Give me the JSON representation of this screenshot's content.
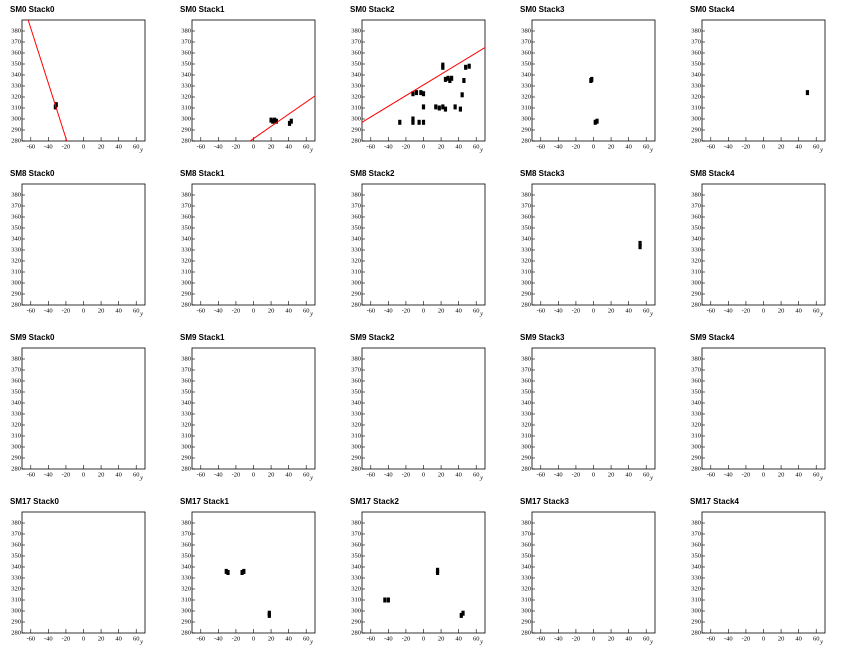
{
  "chart_data": [
    {
      "type": "scatter",
      "title": "SM0 Stack0",
      "x_label": "y",
      "xlim": [
        -70,
        70
      ],
      "ylim": [
        280,
        390
      ],
      "xticks": [
        -60,
        -40,
        -20,
        0,
        20,
        40,
        60
      ],
      "yticks": [
        280,
        290,
        300,
        310,
        320,
        330,
        340,
        350,
        360,
        370,
        380
      ],
      "color": "#000000",
      "x": [
        -32,
        -31
      ],
      "y": [
        311,
        313
      ],
      "fit": {
        "color": "#ff0000",
        "x": [
          -63,
          -19
        ],
        "y": [
          390,
          280
        ]
      }
    },
    {
      "type": "scatter",
      "title": "SM0 Stack1",
      "x_label": "y",
      "xlim": [
        -70,
        70
      ],
      "ylim": [
        280,
        390
      ],
      "xticks": [
        -60,
        -40,
        -20,
        0,
        20,
        40,
        60
      ],
      "yticks": [
        280,
        290,
        300,
        310,
        320,
        330,
        340,
        350,
        360,
        370,
        380
      ],
      "color": "#000000",
      "x": [
        20,
        22,
        24,
        26,
        41,
        43
      ],
      "y": [
        299,
        298,
        299,
        298,
        296,
        298
      ],
      "fit": {
        "color": "#ff0000",
        "x": [
          -4,
          70
        ],
        "y": [
          280,
          321
        ]
      }
    },
    {
      "type": "scatter",
      "title": "SM0 Stack2",
      "x_label": "y",
      "xlim": [
        -70,
        70
      ],
      "ylim": [
        280,
        390
      ],
      "xticks": [
        -60,
        -40,
        -20,
        0,
        20,
        40,
        60
      ],
      "yticks": [
        280,
        290,
        300,
        310,
        320,
        330,
        340,
        350,
        360,
        370,
        380
      ],
      "color": "#000000",
      "x": [
        -27,
        -12,
        -12,
        -5,
        0,
        -12,
        -8,
        -3,
        0,
        0,
        14,
        18,
        22,
        25,
        22,
        22,
        25,
        28,
        32,
        30,
        36,
        42,
        44,
        46,
        48,
        52
      ],
      "y": [
        297,
        297,
        300,
        297,
        297,
        323,
        324,
        324,
        323,
        311,
        311,
        310,
        311,
        309,
        347,
        349,
        336,
        337,
        337,
        335,
        311,
        309,
        322,
        335,
        347,
        348
      ],
      "fit": {
        "color": "#ff0000",
        "x": [
          -70,
          70
        ],
        "y": [
          297,
          365
        ]
      }
    },
    {
      "type": "scatter",
      "title": "SM0 Stack3",
      "x_label": "y",
      "xlim": [
        -70,
        70
      ],
      "ylim": [
        280,
        390
      ],
      "xticks": [
        -60,
        -40,
        -20,
        0,
        20,
        40,
        60
      ],
      "yticks": [
        280,
        290,
        300,
        310,
        320,
        330,
        340,
        350,
        360,
        370,
        380
      ],
      "color": "#000000",
      "x": [
        -3,
        -2,
        2,
        4
      ],
      "y": [
        335,
        336,
        297,
        298
      ]
    },
    {
      "type": "scatter",
      "title": "SM0 Stack4",
      "x_label": "y",
      "xlim": [
        -70,
        70
      ],
      "ylim": [
        280,
        390
      ],
      "xticks": [
        -60,
        -40,
        -20,
        0,
        20,
        40,
        60
      ],
      "yticks": [
        280,
        290,
        300,
        310,
        320,
        330,
        340,
        350,
        360,
        370,
        380
      ],
      "color": "#000000",
      "x": [
        50
      ],
      "y": [
        324
      ]
    },
    {
      "type": "scatter",
      "title": "SM8 Stack0",
      "x_label": "y",
      "xlim": [
        -70,
        70
      ],
      "ylim": [
        280,
        390
      ],
      "xticks": [
        -60,
        -40,
        -20,
        0,
        20,
        40,
        60
      ],
      "yticks": [
        280,
        290,
        300,
        310,
        320,
        330,
        340,
        350,
        360,
        370,
        380
      ],
      "color": "#000000",
      "x": [],
      "y": []
    },
    {
      "type": "scatter",
      "title": "SM8 Stack1",
      "x_label": "y",
      "xlim": [
        -70,
        70
      ],
      "ylim": [
        280,
        390
      ],
      "xticks": [
        -60,
        -40,
        -20,
        0,
        20,
        40,
        60
      ],
      "yticks": [
        280,
        290,
        300,
        310,
        320,
        330,
        340,
        350,
        360,
        370,
        380
      ],
      "color": "#000000",
      "x": [],
      "y": []
    },
    {
      "type": "scatter",
      "title": "SM8 Stack2",
      "x_label": "y",
      "xlim": [
        -70,
        70
      ],
      "ylim": [
        280,
        390
      ],
      "xticks": [
        -60,
        -40,
        -20,
        0,
        20,
        40,
        60
      ],
      "yticks": [
        280,
        290,
        300,
        310,
        320,
        330,
        340,
        350,
        360,
        370,
        380
      ],
      "color": "#000000",
      "x": [],
      "y": []
    },
    {
      "type": "scatter",
      "title": "SM8 Stack3",
      "x_label": "y",
      "xlim": [
        -70,
        70
      ],
      "ylim": [
        280,
        390
      ],
      "xticks": [
        -60,
        -40,
        -20,
        0,
        20,
        40,
        60
      ],
      "yticks": [
        280,
        290,
        300,
        310,
        320,
        330,
        340,
        350,
        360,
        370,
        380
      ],
      "color": "#000000",
      "x": [
        53,
        53
      ],
      "y": [
        336,
        333
      ]
    },
    {
      "type": "scatter",
      "title": "SM8 Stack4",
      "x_label": "y",
      "xlim": [
        -70,
        70
      ],
      "ylim": [
        280,
        390
      ],
      "xticks": [
        -60,
        -40,
        -20,
        0,
        20,
        40,
        60
      ],
      "yticks": [
        280,
        290,
        300,
        310,
        320,
        330,
        340,
        350,
        360,
        370,
        380
      ],
      "color": "#000000",
      "x": [],
      "y": []
    },
    {
      "type": "scatter",
      "title": "SM9 Stack0",
      "x_label": "y",
      "xlim": [
        -70,
        70
      ],
      "ylim": [
        280,
        390
      ],
      "xticks": [
        -60,
        -40,
        -20,
        0,
        20,
        40,
        60
      ],
      "yticks": [
        280,
        290,
        300,
        310,
        320,
        330,
        340,
        350,
        360,
        370,
        380
      ],
      "color": "#000000",
      "x": [],
      "y": []
    },
    {
      "type": "scatter",
      "title": "SM9 Stack1",
      "x_label": "y",
      "xlim": [
        -70,
        70
      ],
      "ylim": [
        280,
        390
      ],
      "xticks": [
        -60,
        -40,
        -20,
        0,
        20,
        40,
        60
      ],
      "yticks": [
        280,
        290,
        300,
        310,
        320,
        330,
        340,
        350,
        360,
        370,
        380
      ],
      "color": "#000000",
      "x": [],
      "y": []
    },
    {
      "type": "scatter",
      "title": "SM9 Stack2",
      "x_label": "y",
      "xlim": [
        -70,
        70
      ],
      "ylim": [
        280,
        390
      ],
      "xticks": [
        -60,
        -40,
        -20,
        0,
        20,
        40,
        60
      ],
      "yticks": [
        280,
        290,
        300,
        310,
        320,
        330,
        340,
        350,
        360,
        370,
        380
      ],
      "color": "#000000",
      "x": [],
      "y": []
    },
    {
      "type": "scatter",
      "title": "SM9 Stack3",
      "x_label": "y",
      "xlim": [
        -70,
        70
      ],
      "ylim": [
        280,
        390
      ],
      "xticks": [
        -60,
        -40,
        -20,
        0,
        20,
        40,
        60
      ],
      "yticks": [
        280,
        290,
        300,
        310,
        320,
        330,
        340,
        350,
        360,
        370,
        380
      ],
      "color": "#000000",
      "x": [],
      "y": []
    },
    {
      "type": "scatter",
      "title": "SM9 Stack4",
      "x_label": "y",
      "xlim": [
        -70,
        70
      ],
      "ylim": [
        280,
        390
      ],
      "xticks": [
        -60,
        -40,
        -20,
        0,
        20,
        40,
        60
      ],
      "yticks": [
        280,
        290,
        300,
        310,
        320,
        330,
        340,
        350,
        360,
        370,
        380
      ],
      "color": "#000000",
      "x": [],
      "y": []
    },
    {
      "type": "scatter",
      "title": "SM17 Stack0",
      "x_label": "y",
      "xlim": [
        -70,
        70
      ],
      "ylim": [
        280,
        390
      ],
      "xticks": [
        -60,
        -40,
        -20,
        0,
        20,
        40,
        60
      ],
      "yticks": [
        280,
        290,
        300,
        310,
        320,
        330,
        340,
        350,
        360,
        370,
        380
      ],
      "color": "#000000",
      "x": [],
      "y": []
    },
    {
      "type": "scatter",
      "title": "SM17 Stack1",
      "x_label": "y",
      "xlim": [
        -70,
        70
      ],
      "ylim": [
        280,
        390
      ],
      "xticks": [
        -60,
        -40,
        -20,
        0,
        20,
        40,
        60
      ],
      "yticks": [
        280,
        290,
        300,
        310,
        320,
        330,
        340,
        350,
        360,
        370,
        380
      ],
      "color": "#000000",
      "x": [
        -31,
        -29,
        -13,
        -11,
        18,
        18
      ],
      "y": [
        336,
        335,
        335,
        336,
        298,
        296
      ]
    },
    {
      "type": "scatter",
      "title": "SM17 Stack2",
      "x_label": "y",
      "xlim": [
        -70,
        70
      ],
      "ylim": [
        280,
        390
      ],
      "xticks": [
        -60,
        -40,
        -20,
        0,
        20,
        40,
        60
      ],
      "yticks": [
        280,
        290,
        300,
        310,
        320,
        330,
        340,
        350,
        360,
        370,
        380
      ],
      "color": "#000000",
      "x": [
        -44,
        -40,
        16,
        16,
        43,
        45
      ],
      "y": [
        310,
        310,
        335,
        337,
        296,
        298
      ]
    },
    {
      "type": "scatter",
      "title": "SM17 Stack3",
      "x_label": "y",
      "xlim": [
        -70,
        70
      ],
      "ylim": [
        280,
        390
      ],
      "xticks": [
        -60,
        -40,
        -20,
        0,
        20,
        40,
        60
      ],
      "yticks": [
        280,
        290,
        300,
        310,
        320,
        330,
        340,
        350,
        360,
        370,
        380
      ],
      "color": "#000000",
      "x": [],
      "y": []
    },
    {
      "type": "scatter",
      "title": "SM17 Stack4",
      "x_label": "y",
      "xlim": [
        -70,
        70
      ],
      "ylim": [
        280,
        390
      ],
      "xticks": [
        -60,
        -40,
        -20,
        0,
        20,
        40,
        60
      ],
      "yticks": [
        280,
        290,
        300,
        310,
        320,
        330,
        340,
        350,
        360,
        370,
        380
      ],
      "color": "#000000",
      "x": [],
      "y": []
    }
  ]
}
